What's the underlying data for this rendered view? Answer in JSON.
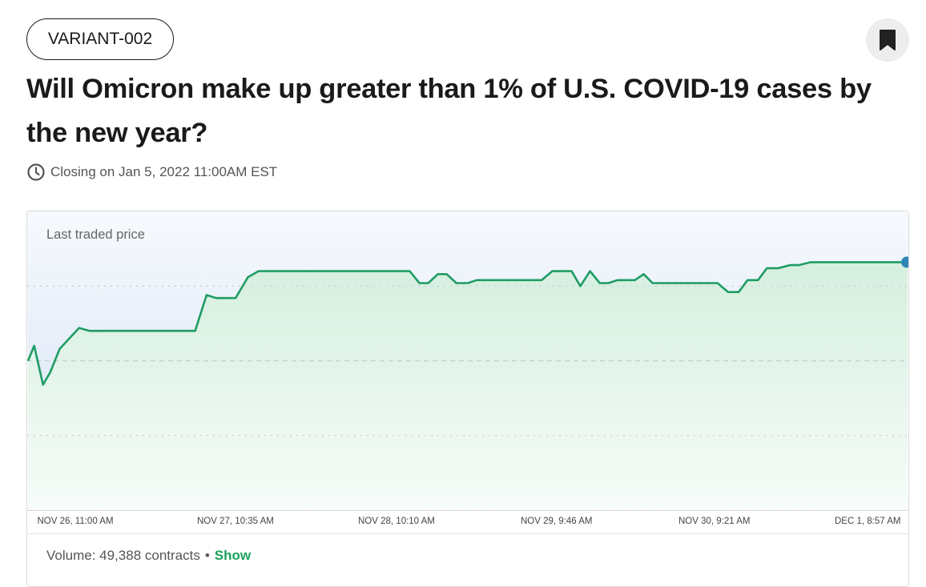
{
  "market": {
    "tag": "VARIANT-002",
    "title": "Will Omicron make up greater than 1% of U.S. COVID-19 cases by the new year?",
    "closing": "Closing on Jan 5, 2022 11:00AM EST"
  },
  "chart": {
    "label": "Last traded price",
    "x_ticks": [
      "NOV 26, 11:00 AM",
      "NOV 27, 10:35 AM",
      "NOV 28, 10:10 AM",
      "NOV 29, 9:46 AM",
      "NOV 30, 9:21 AM",
      "DEC 1, 8:57 AM"
    ]
  },
  "volume": {
    "text": "Volume: 49,388 contracts",
    "separator": "•",
    "show_label": "Show"
  },
  "colors": {
    "line": "#1f9c64",
    "fill_top": "#c7d9f0",
    "fill_green": "#dff1e6",
    "accent_link": "#19a35a",
    "end_dot": "#2f86b6"
  },
  "icons": {
    "bookmark": "bookmark-icon",
    "clock": "clock-icon"
  },
  "chart_data": {
    "type": "line",
    "title": "Last traded price",
    "xlabel": "",
    "ylabel": "",
    "x_ticks": [
      "NOV 26, 11:00 AM",
      "NOV 27, 10:35 AM",
      "NOV 28, 10:10 AM",
      "NOV 29, 9:46 AM",
      "NOV 30, 9:21 AM",
      "DEC 1, 8:57 AM"
    ],
    "ylim": [
      0,
      100
    ],
    "grid": true,
    "series": [
      {
        "points": [
          [
            0.0,
            50
          ],
          [
            0.007,
            55
          ],
          [
            0.017,
            42
          ],
          [
            0.025,
            46
          ],
          [
            0.036,
            54
          ],
          [
            0.058,
            61
          ],
          [
            0.07,
            60
          ],
          [
            0.19,
            60
          ],
          [
            0.203,
            72
          ],
          [
            0.214,
            71
          ],
          [
            0.236,
            71
          ],
          [
            0.25,
            78
          ],
          [
            0.262,
            80
          ],
          [
            0.434,
            80
          ],
          [
            0.445,
            76
          ],
          [
            0.455,
            76
          ],
          [
            0.466,
            79
          ],
          [
            0.476,
            79
          ],
          [
            0.487,
            76
          ],
          [
            0.5,
            76
          ],
          [
            0.51,
            77
          ],
          [
            0.584,
            77
          ],
          [
            0.596,
            80
          ],
          [
            0.618,
            80
          ],
          [
            0.628,
            75
          ],
          [
            0.639,
            80
          ],
          [
            0.65,
            76
          ],
          [
            0.66,
            76
          ],
          [
            0.67,
            77
          ],
          [
            0.69,
            77
          ],
          [
            0.7,
            79
          ],
          [
            0.71,
            76
          ],
          [
            0.734,
            76
          ],
          [
            0.784,
            76
          ],
          [
            0.796,
            73
          ],
          [
            0.808,
            73
          ],
          [
            0.818,
            77
          ],
          [
            0.83,
            77
          ],
          [
            0.84,
            81
          ],
          [
            0.853,
            81
          ],
          [
            0.866,
            82
          ],
          [
            0.876,
            82
          ],
          [
            0.89,
            83
          ],
          [
            1.0,
            83
          ]
        ]
      }
    ]
  }
}
